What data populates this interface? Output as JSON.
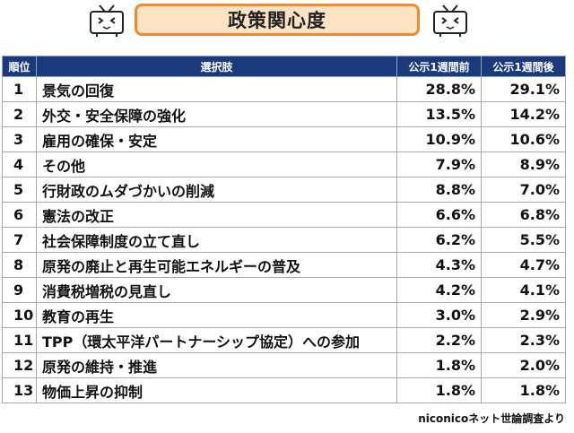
{
  "chart_data": {
    "type": "table",
    "title": "政策関心度",
    "columns": [
      "順位",
      "選択肢",
      "公示1週間前",
      "公示1週間後"
    ],
    "rows": [
      {
        "rank": "1",
        "item": "景気の回復",
        "before": "28.8%",
        "after": "29.1%"
      },
      {
        "rank": "2",
        "item": "外交・安全保障の強化",
        "before": "13.5%",
        "after": "14.2%"
      },
      {
        "rank": "3",
        "item": "雇用の確保・安定",
        "before": "10.9%",
        "after": "10.6%"
      },
      {
        "rank": "4",
        "item": "その他",
        "before": "7.9%",
        "after": "8.9%"
      },
      {
        "rank": "5",
        "item": "行財政のムダづかいの削減",
        "before": "8.8%",
        "after": "7.0%"
      },
      {
        "rank": "6",
        "item": "憲法の改正",
        "before": "6.6%",
        "after": "6.8%"
      },
      {
        "rank": "7",
        "item": "社会保障制度の立て直し",
        "before": "6.2%",
        "after": "5.5%"
      },
      {
        "rank": "8",
        "item": "原発の廃止と再生可能エネルギーの普及",
        "before": "4.3%",
        "after": "4.7%"
      },
      {
        "rank": "9",
        "item": "消費税増税の見直し",
        "before": "4.2%",
        "after": "4.1%"
      },
      {
        "rank": "10",
        "item": "教育の再生",
        "before": "3.0%",
        "after": "2.9%"
      },
      {
        "rank": "11",
        "item": "TPP（環太平洋パートナーシップ協定）への参加",
        "before": "2.2%",
        "after": "2.3%"
      },
      {
        "rank": "12",
        "item": "原発の維持・推進",
        "before": "1.8%",
        "after": "2.0%"
      },
      {
        "rank": "13",
        "item": "物価上昇の抑制",
        "before": "1.8%",
        "after": "1.8%"
      }
    ],
    "source": "niconicoネット世論調査より"
  },
  "colors": {
    "header_bg": "#1b3a7c",
    "title_border": "#f08a2c",
    "title_bg": "#fde3c4"
  },
  "icons": [
    "niconico-tv-icon",
    "niconico-tv-icon"
  ]
}
